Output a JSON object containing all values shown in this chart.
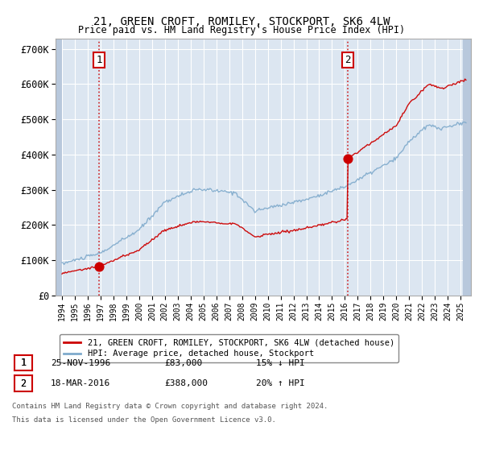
{
  "title": "21, GREEN CROFT, ROMILEY, STOCKPORT, SK6 4LW",
  "subtitle": "Price paid vs. HM Land Registry's House Price Index (HPI)",
  "ylim": [
    0,
    730000
  ],
  "yticks": [
    0,
    100000,
    200000,
    300000,
    400000,
    500000,
    600000,
    700000
  ],
  "ytick_labels": [
    "£0",
    "£100K",
    "£200K",
    "£300K",
    "£400K",
    "£500K",
    "£600K",
    "£700K"
  ],
  "background_color": "#ffffff",
  "plot_bg_color": "#dce6f1",
  "hatch_color": "#b8c8dc",
  "grid_color": "#ffffff",
  "sale1_x": 1996.9,
  "sale1_price": 83000,
  "sale2_x": 2016.2,
  "sale2_price": 388000,
  "legend_line1": "21, GREEN CROFT, ROMILEY, STOCKPORT, SK6 4LW (detached house)",
  "legend_line2": "HPI: Average price, detached house, Stockport",
  "footer3": "Contains HM Land Registry data © Crown copyright and database right 2024.",
  "footer4": "This data is licensed under the Open Government Licence v3.0.",
  "sale_color": "#cc0000",
  "hpi_color": "#7faacc",
  "dashed_line_color": "#cc0000",
  "xlim_left": 1993.5,
  "xlim_right": 2025.8,
  "hatch_left_end": 1994.0,
  "hatch_right_start": 2025.2
}
